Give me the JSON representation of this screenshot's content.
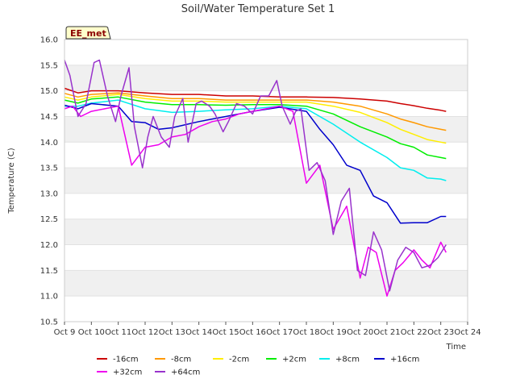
{
  "chart_data": {
    "type": "line",
    "title": "Soil/Water Temperature Set 1",
    "xlabel": "Time",
    "ylabel": "Temperature (C)",
    "badge": "EE_met",
    "xlim": [
      0,
      15
    ],
    "ylim": [
      10.5,
      16.0
    ],
    "xticks": [
      "Oct 9",
      "Oct 10",
      "Oct 11",
      "Oct 12",
      "Oct 13",
      "Oct 14",
      "Oct 15",
      "Oct 16",
      "Oct 17",
      "Oct 18",
      "Oct 19",
      "Oct 20",
      "Oct 21",
      "Oct 22",
      "Oct 23",
      "Oct 24"
    ],
    "yticks": [
      10.5,
      11.0,
      11.5,
      12.0,
      12.5,
      13.0,
      13.5,
      14.0,
      14.5,
      15.0,
      15.5,
      16.0
    ],
    "grid": "horizontal bands",
    "legend_position": "bottom",
    "series": [
      {
        "name": "-16cm",
        "color": "#cc0000",
        "x": [
          0,
          0.5,
          1,
          2,
          3,
          4,
          5,
          6,
          7,
          8,
          9,
          10,
          11,
          12,
          12.5,
          13,
          13.5,
          14,
          14.2
        ],
        "y": [
          15.05,
          14.96,
          15.0,
          15.0,
          14.96,
          14.93,
          14.93,
          14.9,
          14.9,
          14.88,
          14.88,
          14.87,
          14.84,
          14.8,
          14.75,
          14.71,
          14.66,
          14.62,
          14.6
        ]
      },
      {
        "name": "-8cm",
        "color": "#ff9900",
        "x": [
          0,
          0.5,
          1,
          2,
          3,
          4,
          5,
          6,
          7,
          8,
          9,
          10,
          11,
          12,
          12.5,
          13,
          13.5,
          14,
          14.2
        ],
        "y": [
          14.95,
          14.88,
          14.93,
          14.96,
          14.9,
          14.85,
          14.85,
          14.82,
          14.82,
          14.82,
          14.82,
          14.78,
          14.7,
          14.55,
          14.45,
          14.38,
          14.3,
          14.25,
          14.23
        ]
      },
      {
        "name": "-2cm",
        "color": "#ffee00",
        "x": [
          0,
          0.5,
          1,
          2,
          3,
          4,
          5,
          6,
          7,
          8,
          9,
          10,
          11,
          12,
          12.5,
          13,
          13.5,
          14,
          14.2
        ],
        "y": [
          14.88,
          14.82,
          14.88,
          14.93,
          14.85,
          14.8,
          14.8,
          14.78,
          14.78,
          14.78,
          14.78,
          14.7,
          14.58,
          14.38,
          14.25,
          14.15,
          14.05,
          14.0,
          13.98
        ]
      },
      {
        "name": "+2cm",
        "color": "#00ee00",
        "x": [
          0,
          0.5,
          1,
          2,
          3,
          4,
          5,
          6,
          7,
          8,
          9,
          10,
          11,
          12,
          12.5,
          13,
          13.5,
          14,
          14.2
        ],
        "y": [
          14.82,
          14.76,
          14.84,
          14.88,
          14.78,
          14.73,
          14.73,
          14.72,
          14.73,
          14.73,
          14.7,
          14.55,
          14.3,
          14.1,
          13.97,
          13.9,
          13.75,
          13.7,
          13.68
        ]
      },
      {
        "name": "+8cm",
        "color": "#00eeee",
        "x": [
          0,
          0.5,
          1,
          2,
          3,
          4,
          5,
          6,
          7,
          8,
          9,
          10,
          11,
          12,
          12.5,
          13,
          13.5,
          14,
          14.2
        ],
        "y": [
          14.7,
          14.7,
          14.76,
          14.82,
          14.65,
          14.58,
          14.6,
          14.63,
          14.65,
          14.7,
          14.65,
          14.35,
          14.0,
          13.7,
          13.5,
          13.45,
          13.3,
          13.28,
          13.25
        ]
      },
      {
        "name": "+16cm",
        "color": "#0000cc",
        "x": [
          0,
          0.5,
          1,
          2,
          2.5,
          3,
          3.5,
          4,
          5,
          6,
          7,
          8,
          9,
          9.5,
          10,
          10.5,
          11,
          11.5,
          12,
          12.5,
          13,
          13.5,
          14,
          14.2
        ],
        "y": [
          14.72,
          14.65,
          14.75,
          14.7,
          14.4,
          14.38,
          14.25,
          14.28,
          14.4,
          14.5,
          14.6,
          14.68,
          14.6,
          14.25,
          13.95,
          13.55,
          13.45,
          12.95,
          12.82,
          12.42,
          12.43,
          12.43,
          12.55,
          12.55
        ]
      },
      {
        "name": "+32cm",
        "color": "#ee00ee",
        "x": [
          0,
          0.3,
          0.6,
          1,
          1.5,
          2,
          2.5,
          3,
          3.5,
          4,
          4.5,
          5,
          5.5,
          6,
          6.5,
          7,
          7.5,
          8,
          8.5,
          9,
          9.5,
          10,
          10.5,
          11,
          11.3,
          11.6,
          12,
          12.3,
          12.6,
          13,
          13.3,
          13.6,
          14,
          14.2
        ],
        "y": [
          14.65,
          14.7,
          14.5,
          14.6,
          14.65,
          14.7,
          13.55,
          13.9,
          13.95,
          14.1,
          14.15,
          14.3,
          14.4,
          14.45,
          14.55,
          14.6,
          14.65,
          14.7,
          14.6,
          13.2,
          13.55,
          12.3,
          12.75,
          11.35,
          11.95,
          11.85,
          11.0,
          11.5,
          11.65,
          11.9,
          11.7,
          11.55,
          12.05,
          11.85
        ]
      },
      {
        "name": "+64cm",
        "color": "#9933cc",
        "x": [
          0,
          0.2,
          0.5,
          0.8,
          1.1,
          1.3,
          1.6,
          1.9,
          2.1,
          2.4,
          2.6,
          2.9,
          3.1,
          3.3,
          3.6,
          3.9,
          4.1,
          4.4,
          4.6,
          4.9,
          5.1,
          5.4,
          5.6,
          5.9,
          6.1,
          6.4,
          6.7,
          7.0,
          7.3,
          7.6,
          7.9,
          8.1,
          8.4,
          8.6,
          8.8,
          9.1,
          9.4,
          9.7,
          10.0,
          10.3,
          10.6,
          10.9,
          11.2,
          11.5,
          11.8,
          12.1,
          12.4,
          12.7,
          13.0,
          13.3,
          13.6,
          13.9,
          14.2
        ],
        "y": [
          15.6,
          15.3,
          14.5,
          14.75,
          15.55,
          15.6,
          14.9,
          14.4,
          14.9,
          15.45,
          14.3,
          13.5,
          14.1,
          14.5,
          14.1,
          13.9,
          14.5,
          14.85,
          14.0,
          14.75,
          14.8,
          14.7,
          14.55,
          14.2,
          14.4,
          14.75,
          14.7,
          14.55,
          14.9,
          14.9,
          15.2,
          14.7,
          14.35,
          14.6,
          14.65,
          13.45,
          13.6,
          13.25,
          12.2,
          12.85,
          13.1,
          11.5,
          11.4,
          12.25,
          11.9,
          11.1,
          11.7,
          11.95,
          11.85,
          11.55,
          11.6,
          11.75,
          12.0
        ]
      }
    ]
  }
}
